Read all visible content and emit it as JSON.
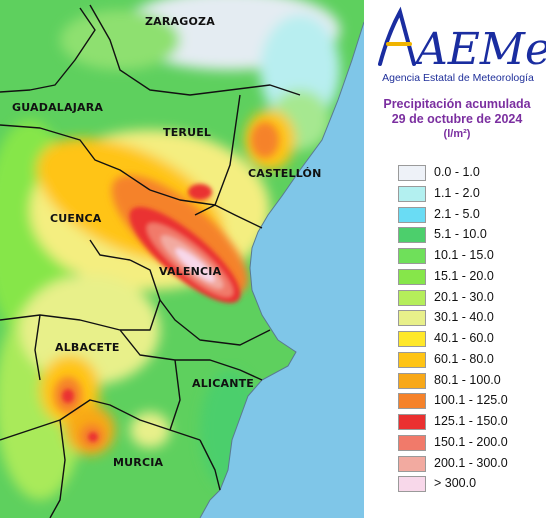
{
  "logo": {
    "text": "AEMet",
    "subtitle": "Agencia Estatal de Meteorología"
  },
  "legend": {
    "title_line1": "Precipitación acumulada",
    "title_line2": "29 de octubre de 2024",
    "units": "(l/m²)",
    "items": [
      {
        "label": "0.0 - 1.0",
        "color": "#eef2f8"
      },
      {
        "label": "1.1 - 2.0",
        "color": "#b3f0f0"
      },
      {
        "label": "2.1 - 5.0",
        "color": "#6adcf4"
      },
      {
        "label": "5.1 - 10.0",
        "color": "#4ccf6c"
      },
      {
        "label": "10.1 - 15.0",
        "color": "#6fe05a"
      },
      {
        "label": "15.1 - 20.0",
        "color": "#86e64a"
      },
      {
        "label": "20.1 - 30.0",
        "color": "#b5ee5a"
      },
      {
        "label": "30.1 - 40.0",
        "color": "#e8f08a"
      },
      {
        "label": "40.1 - 60.0",
        "color": "#ffe82a"
      },
      {
        "label": "60.1 - 80.0",
        "color": "#ffc414"
      },
      {
        "label": "80.1 - 100.0",
        "color": "#f8a818"
      },
      {
        "label": "100.1 - 125.0",
        "color": "#f5822a"
      },
      {
        "label": "125.1 - 150.0",
        "color": "#ea3030"
      },
      {
        "label": "150.1 - 200.0",
        "color": "#f17a6a"
      },
      {
        "label": "200.1 - 300.0",
        "color": "#f2aaa0"
      },
      {
        "label": "> 300.0",
        "color": "#f8d8ea"
      }
    ]
  },
  "map": {
    "provinces": [
      "ZARAGOZA",
      "GUADALAJARA",
      "TERUEL",
      "CASTELLÓN",
      "CUENCA",
      "VALENCIA",
      "ALBACETE",
      "ALICANTE",
      "MURCIA"
    ]
  }
}
